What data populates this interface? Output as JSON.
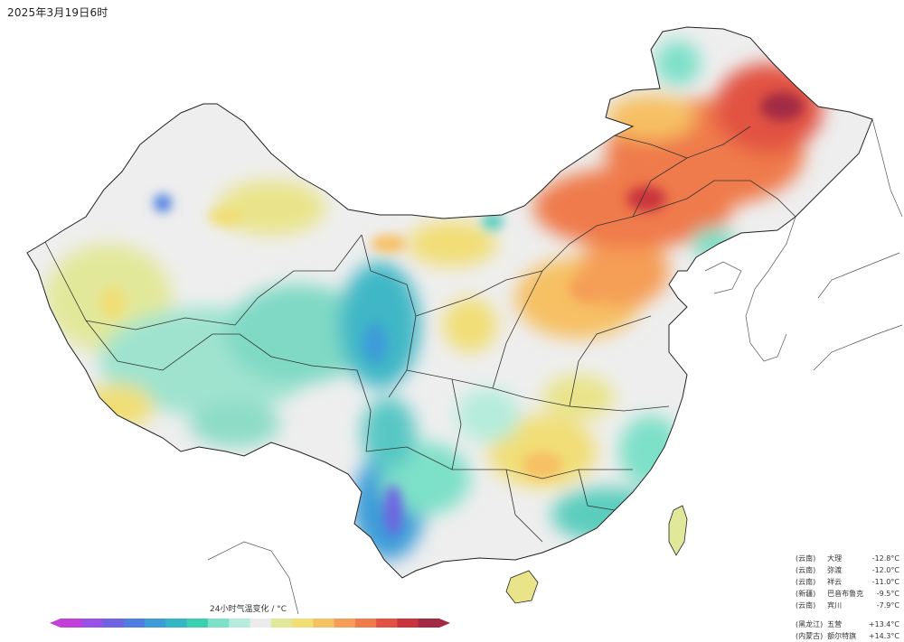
{
  "timestamp": "2025年3月19日6时",
  "legend": {
    "title": "24小时气温变化 / °C",
    "colors": [
      "#c040d8",
      "#9a52e6",
      "#6f63e0",
      "#4d7ee0",
      "#3d9cd8",
      "#34b6c6",
      "#3ccfb0",
      "#7de0c8",
      "#b5ecdc",
      "#ececec",
      "#e2e89a",
      "#f1de76",
      "#f6c064",
      "#f59e57",
      "#ef7a4c",
      "#e25243",
      "#c9353d",
      "#a32a44"
    ]
  },
  "stations": {
    "drop": [
      {
        "region": "(云南)",
        "name": "大理",
        "value": "-12.8°C"
      },
      {
        "region": "(云南)",
        "name": "弥渡",
        "value": "-12.0°C"
      },
      {
        "region": "(云南)",
        "name": "祥云",
        "value": "-11.0°C"
      },
      {
        "region": "(新疆)",
        "name": "巴音布鲁克",
        "value": "-9.5°C"
      },
      {
        "region": "(云南)",
        "name": "宾川",
        "value": "-7.9°C"
      }
    ],
    "rise": [
      {
        "region": "(黑龙江)",
        "name": "五营",
        "value": "+13.4°C"
      },
      {
        "region": "(内蒙古)",
        "name": "额尔特旗",
        "value": "+14.3°C"
      }
    ]
  }
}
